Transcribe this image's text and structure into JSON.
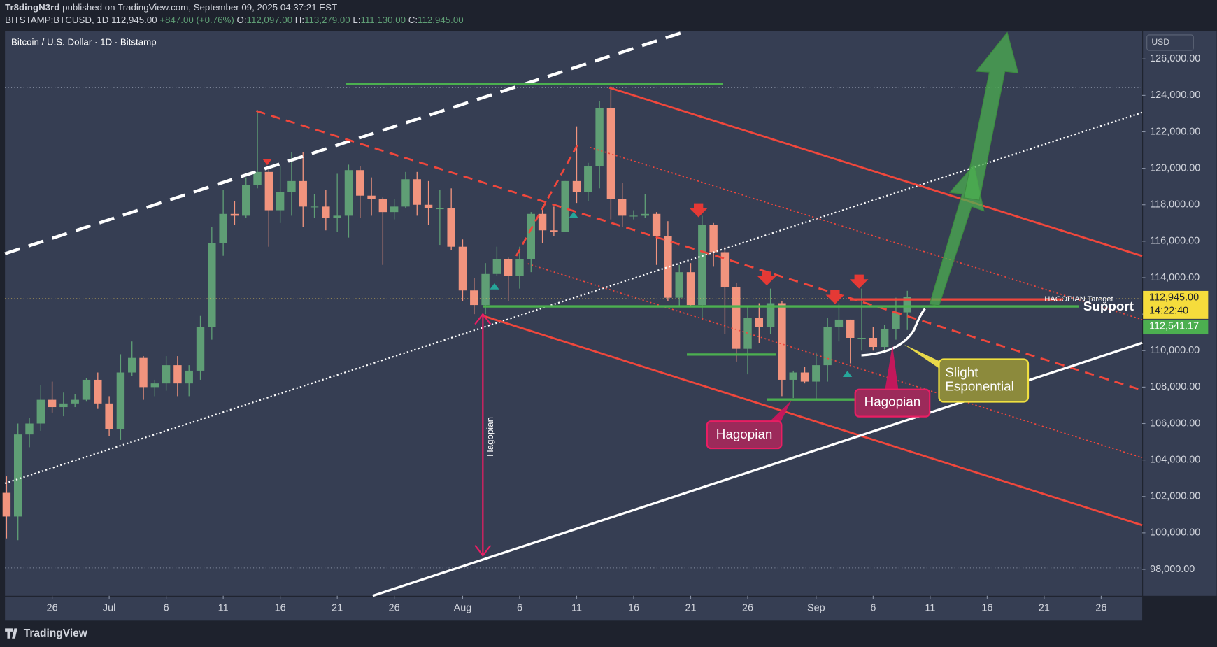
{
  "header": {
    "author": "Tr8dingN3rd",
    "published": "published on TradingView.com, September 09, 2025 04:37:21 EST",
    "symbol": "BITSTAMP:BTCUSD, 1D",
    "price": "112,945.00",
    "change": "+847.00 (+0.76%)",
    "o_label": "O:",
    "o": "112,097.00",
    "h_label": "H:",
    "h": "113,279.00",
    "l_label": "L:",
    "l": "111,130.00",
    "c_label": "C:",
    "c": "112,945.00"
  },
  "chart_data": {
    "type": "candlestick",
    "title": "Bitcoin / U.S. Dollar · 1D · Bitstamp",
    "y_axis_label": "USD",
    "x": [
      0,
      1,
      2,
      3,
      4,
      5,
      6,
      7,
      8,
      9,
      10,
      11,
      12,
      13,
      14,
      15,
      16,
      17,
      18,
      19,
      20,
      21,
      22,
      23,
      24,
      25,
      26,
      27,
      28,
      29,
      30,
      31,
      32,
      33,
      34,
      35,
      36,
      37,
      38,
      39,
      40,
      41,
      42,
      43,
      44,
      45,
      46,
      47,
      48,
      49,
      50,
      51,
      52,
      53,
      54,
      55,
      56,
      57,
      58,
      59,
      60,
      61,
      62,
      63,
      64,
      65,
      66,
      67,
      68,
      69,
      70,
      71,
      72,
      73,
      74,
      75,
      76,
      77,
      78,
      79
    ],
    "open": [
      102200,
      100900,
      105400,
      106000,
      107300,
      106900,
      107100,
      107300,
      108400,
      107100,
      105700,
      108800,
      109600,
      108000,
      108200,
      109200,
      108200,
      108900,
      111300,
      115900,
      117500,
      117400,
      119100,
      119800,
      117700,
      118700,
      119300,
      117900,
      117900,
      117300,
      117400,
      119900,
      118500,
      118300,
      117600,
      117900,
      119400,
      118000,
      117800,
      117800,
      115700,
      113300,
      112500,
      114200,
      115000,
      114100,
      115000,
      117500,
      116600,
      116500,
      119300,
      118700,
      120100,
      123300,
      118300,
      117400,
      117400,
      117500,
      116300,
      112900,
      114300,
      112500,
      116900,
      115400,
      113500,
      110100,
      111800,
      111300,
      112600,
      108400,
      108800,
      108300,
      109200,
      111300,
      111700,
      110700,
      110700,
      110200,
      111200,
      112097
    ],
    "high": [
      103100,
      106000,
      106300,
      108100,
      108300,
      107700,
      107600,
      108500,
      108800,
      107500,
      109800,
      110500,
      109700,
      108400,
      109700,
      109700,
      109200,
      111900,
      116800,
      118800,
      118200,
      119500,
      123200,
      120000,
      120100,
      120900,
      120900,
      118600,
      118800,
      119700,
      120200,
      120100,
      119500,
      118400,
      118300,
      119800,
      119800,
      119300,
      118800,
      118900,
      116100,
      114000,
      114800,
      115700,
      115100,
      115700,
      117600,
      117900,
      117900,
      119300,
      122300,
      120300,
      123700,
      124500,
      119200,
      117700,
      118600,
      117600,
      117100,
      114700,
      114800,
      117400,
      117000,
      115700,
      113700,
      112400,
      112600,
      113400,
      112700,
      108900,
      109100,
      109900,
      111800,
      112600,
      111700,
      113400,
      111300,
      111400,
      112900,
      113279
    ],
    "low": [
      99700,
      99600,
      104700,
      105600,
      106600,
      106400,
      106900,
      107200,
      106800,
      105300,
      105100,
      108600,
      107300,
      107500,
      107800,
      107500,
      107500,
      108400,
      110600,
      115200,
      116900,
      117300,
      118900,
      115700,
      117000,
      117400,
      116800,
      117300,
      116600,
      116500,
      116200,
      117300,
      117400,
      114700,
      117200,
      117800,
      117400,
      116900,
      115800,
      115500,
      112700,
      112000,
      112000,
      114100,
      112700,
      113400,
      114300,
      115900,
      116300,
      116500,
      118100,
      118200,
      118900,
      117200,
      116800,
      117200,
      117300,
      114700,
      112700,
      112400,
      112400,
      111700,
      114600,
      110900,
      109400,
      108700,
      110400,
      110900,
      107500,
      107400,
      108200,
      107300,
      108300,
      110500,
      109300,
      110000,
      110000,
      110000,
      110600,
      111130
    ],
    "close": [
      100900,
      105400,
      106000,
      107300,
      106900,
      107100,
      107300,
      108400,
      107100,
      105700,
      108800,
      109600,
      108000,
      108200,
      109200,
      108200,
      108900,
      111300,
      115900,
      117500,
      117400,
      119100,
      119800,
      117700,
      118700,
      119300,
      117900,
      117900,
      117300,
      117400,
      119900,
      118500,
      118300,
      117600,
      117900,
      119400,
      118000,
      117800,
      117800,
      115700,
      113300,
      112500,
      114200,
      115000,
      114100,
      115000,
      117500,
      116600,
      116500,
      119300,
      118700,
      120100,
      123300,
      118300,
      117400,
      117400,
      117500,
      116300,
      112900,
      114300,
      112500,
      116900,
      115400,
      113500,
      110100,
      111800,
      111300,
      112600,
      108400,
      108800,
      108300,
      109200,
      111300,
      111700,
      110700,
      110700,
      110200,
      111200,
      112100,
      112945
    ],
    "up_color": "#5f9e75",
    "down_color": "#f2947e",
    "xlim": [
      -0.14,
      99.6
    ],
    "xticks": [
      {
        "value": 4,
        "label": "26"
      },
      {
        "value": 9,
        "label": "Jul"
      },
      {
        "value": 14,
        "label": "6"
      },
      {
        "value": 19,
        "label": "11"
      },
      {
        "value": 24,
        "label": "16"
      },
      {
        "value": 29,
        "label": "21"
      },
      {
        "value": 34,
        "label": "26"
      },
      {
        "value": 40,
        "label": "Aug"
      },
      {
        "value": 45,
        "label": "6"
      },
      {
        "value": 50,
        "label": "11"
      },
      {
        "value": 55,
        "label": "16"
      },
      {
        "value": 60,
        "label": "21"
      },
      {
        "value": 65,
        "label": "26"
      },
      {
        "value": 71,
        "label": "Sep"
      },
      {
        "value": 76,
        "label": "6"
      },
      {
        "value": 81,
        "label": "11"
      },
      {
        "value": 86,
        "label": "16"
      },
      {
        "value": 91,
        "label": "21"
      },
      {
        "value": 96,
        "label": "26"
      }
    ],
    "ylim": [
      96550,
      127530
    ],
    "yticks": [
      {
        "value": 98000,
        "label": "98,000.00"
      },
      {
        "value": 100000,
        "label": "100,000.00"
      },
      {
        "value": 102000,
        "label": "102,000.00"
      },
      {
        "value": 104000,
        "label": "104,000.00"
      },
      {
        "value": 106000,
        "label": "106,000.00"
      },
      {
        "value": 108000,
        "label": "108,000.00"
      },
      {
        "value": 110000,
        "label": "110,000.00"
      },
      {
        "value": 112000,
        "label": "112,000.00"
      },
      {
        "value": 114000,
        "label": "114,000.00"
      },
      {
        "value": 116000,
        "label": "116,000.00"
      },
      {
        "value": 118000,
        "label": "118,000.00"
      },
      {
        "value": 120000,
        "label": "120,000.00"
      },
      {
        "value": 122000,
        "label": "122,000.00"
      },
      {
        "value": 124000,
        "label": "124,000.00"
      },
      {
        "value": 126000,
        "label": "126,000.00"
      }
    ],
    "grid": false,
    "price_labels": {
      "last": "112,945.00",
      "countdown": "14:22:40",
      "other": "112,541.17"
    },
    "annotations": {
      "target": "HAGOPIAN Tareget",
      "support": "Support",
      "curve_1": "Slight",
      "curve_2": "Esponential",
      "hagopian_vertical": "Hagopian",
      "hagopian_1": "Hagopian",
      "hagopian_2": "Hagopian"
    }
  },
  "footer": {
    "brand": "TradingView"
  }
}
